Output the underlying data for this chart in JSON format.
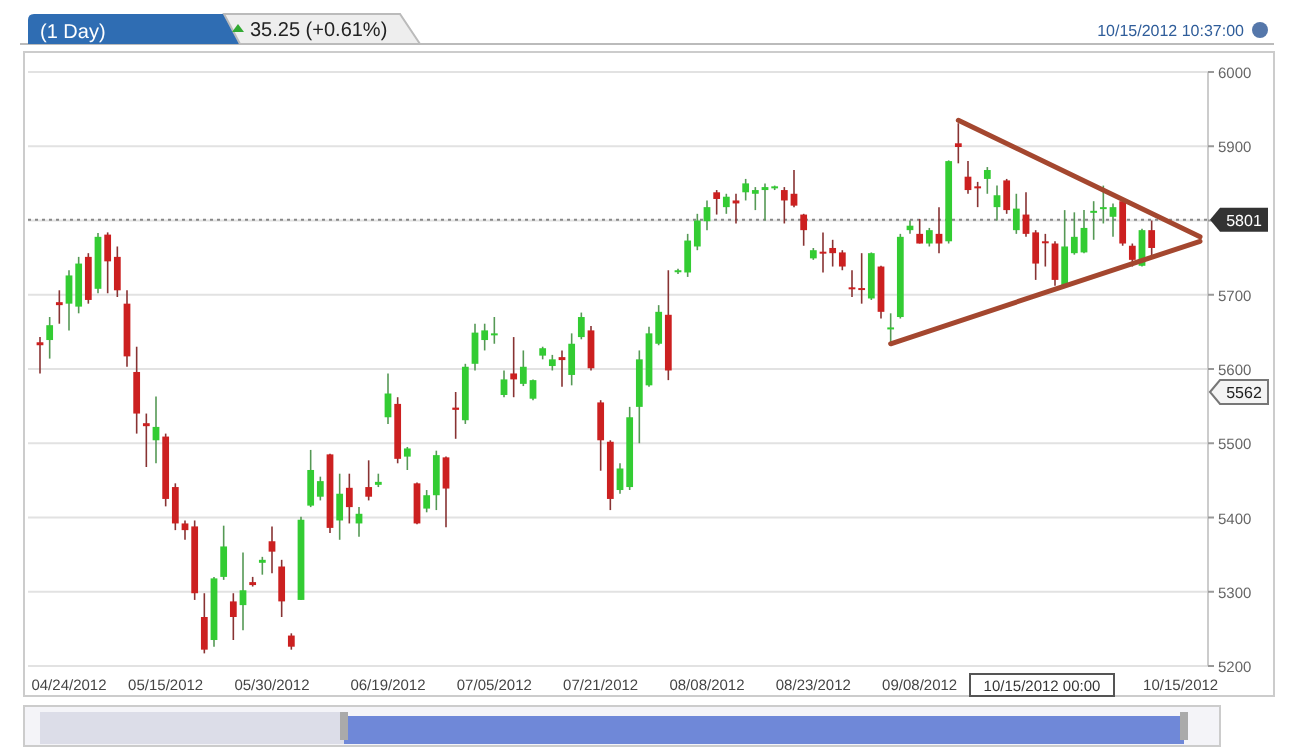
{
  "chart_data": {
    "type": "candlestick",
    "title": "(1 Day)",
    "subtitle": "35.25 (+0.61%)",
    "categories": [
      null,
      null,
      null,
      "04/24/2012",
      null,
      null,
      null,
      null,
      null,
      null,
      null,
      null,
      null,
      "05/15/2012",
      null,
      null,
      null,
      null,
      null,
      null,
      null,
      null,
      null,
      null,
      "05/30/2012",
      null,
      null,
      null,
      null,
      null,
      null,
      null,
      null,
      null,
      null,
      null,
      "06/19/2012",
      null,
      null,
      null,
      null,
      null,
      null,
      null,
      null,
      null,
      null,
      "07/05/2012",
      null,
      null,
      null,
      null,
      null,
      null,
      null,
      null,
      null,
      null,
      "07/21/2012",
      null,
      null,
      null,
      null,
      null,
      null,
      null,
      null,
      null,
      null,
      "08/08/2012",
      null,
      null,
      null,
      null,
      null,
      null,
      null,
      null,
      null,
      null,
      "08/23/2012",
      null,
      null,
      null,
      null,
      null,
      null,
      null,
      null,
      null,
      null,
      "09/08/2012",
      null,
      null,
      null,
      null,
      null,
      null,
      null,
      null,
      null,
      null,
      null,
      null,
      null,
      null,
      null,
      null,
      null,
      null,
      null,
      null,
      null,
      null,
      null,
      null,
      null,
      null,
      "10/15/2012",
      null,
      null
    ],
    "ohlc": [
      [
        5636,
        5643,
        5594,
        5632
      ],
      [
        5639,
        5670,
        5614,
        5659
      ],
      [
        5690,
        5706,
        5661,
        5686
      ],
      [
        5688,
        5733,
        5652,
        5726
      ],
      [
        5684,
        5751,
        5675,
        5742
      ],
      [
        5751,
        5756,
        5688,
        5693
      ],
      [
        5708,
        5783,
        5702,
        5778
      ],
      [
        5781,
        5784,
        5702,
        5745
      ],
      [
        5751,
        5765,
        5697,
        5706
      ],
      [
        5688,
        5706,
        5603,
        5617
      ],
      [
        5596,
        5630,
        5513,
        5540
      ],
      [
        5527,
        5540,
        5468,
        5523
      ],
      [
        5504,
        5563,
        5473,
        5522
      ],
      [
        5509,
        5513,
        5415,
        5425
      ],
      [
        5441,
        5446,
        5383,
        5392
      ],
      [
        5392,
        5396,
        5370,
        5383
      ],
      [
        5388,
        5396,
        5289,
        5298
      ],
      [
        5266,
        5298,
        5217,
        5222
      ],
      [
        5235,
        5320,
        5226,
        5318
      ],
      [
        5320,
        5389,
        5316,
        5361
      ],
      [
        5287,
        5298,
        5235,
        5266
      ],
      [
        5282,
        5353,
        5248,
        5302
      ],
      [
        5313,
        5320,
        5307,
        5309
      ],
      [
        5339,
        5347,
        5323,
        5343
      ],
      [
        5368,
        5388,
        5325,
        5354
      ],
      [
        5334,
        5343,
        5266,
        5287
      ],
      [
        5241,
        5244,
        5222,
        5226
      ],
      [
        5289,
        5401,
        5289,
        5397
      ],
      [
        5416,
        5491,
        5414,
        5464
      ],
      [
        5428,
        5455,
        5423,
        5449
      ],
      [
        5485,
        5486,
        5379,
        5386
      ],
      [
        5396,
        5459,
        5370,
        5432
      ],
      [
        5440,
        5459,
        5392,
        5414
      ],
      [
        5392,
        5414,
        5374,
        5405
      ],
      [
        5441,
        5477,
        5423,
        5428
      ],
      [
        5444,
        5459,
        5441,
        5448
      ],
      [
        5535,
        5594,
        5526,
        5567
      ],
      [
        5553,
        5562,
        5473,
        5479
      ],
      [
        5482,
        5495,
        5464,
        5493
      ],
      [
        5446,
        5447,
        5391,
        5392
      ],
      [
        5412,
        5437,
        5407,
        5430
      ],
      [
        5430,
        5490,
        5410,
        5484
      ],
      [
        5481,
        5482,
        5387,
        5439
      ],
      [
        5548,
        5569,
        5506,
        5545
      ],
      [
        5531,
        5607,
        5526,
        5603
      ],
      [
        5607,
        5661,
        5598,
        5649
      ],
      [
        5639,
        5661,
        5625,
        5652
      ],
      [
        5646,
        5670,
        5634,
        5648
      ],
      [
        5565,
        5598,
        5562,
        5586
      ],
      [
        5594,
        5643,
        5562,
        5586
      ],
      [
        5580,
        5625,
        5577,
        5603
      ],
      [
        5560,
        5586,
        5558,
        5585
      ],
      [
        5618,
        5630,
        5613,
        5628
      ],
      [
        5604,
        5619,
        5598,
        5613
      ],
      [
        5616,
        5625,
        5576,
        5612
      ],
      [
        5592,
        5648,
        5578,
        5634
      ],
      [
        5643,
        5676,
        5640,
        5670
      ],
      [
        5652,
        5658,
        5598,
        5601
      ],
      [
        5555,
        5558,
        5463,
        5504
      ],
      [
        5502,
        5504,
        5410,
        5425
      ],
      [
        5437,
        5473,
        5432,
        5466
      ],
      [
        5441,
        5549,
        5437,
        5535
      ],
      [
        5549,
        5625,
        5500,
        5613
      ],
      [
        5578,
        5657,
        5576,
        5648
      ],
      [
        5634,
        5686,
        5632,
        5677
      ],
      [
        5673,
        5733,
        5585,
        5598
      ],
      [
        5731,
        5735,
        5728,
        5733
      ],
      [
        5730,
        5782,
        5724,
        5773
      ],
      [
        5765,
        5809,
        5760,
        5800
      ],
      [
        5799,
        5827,
        5787,
        5818
      ],
      [
        5838,
        5841,
        5808,
        5829
      ],
      [
        5818,
        5836,
        5809,
        5832
      ],
      [
        5827,
        5836,
        5796,
        5823
      ],
      [
        5838,
        5856,
        5827,
        5850
      ],
      [
        5836,
        5845,
        5814,
        5841
      ],
      [
        5841,
        5850,
        5800,
        5845
      ],
      [
        5845,
        5847,
        5841,
        5846
      ],
      [
        5841,
        5845,
        5796,
        5827
      ],
      [
        5836,
        5868,
        5818,
        5820
      ],
      [
        5808,
        5809,
        5766,
        5787
      ],
      [
        5749,
        5763,
        5747,
        5760
      ],
      [
        5758,
        5784,
        5730,
        5757
      ],
      [
        5763,
        5774,
        5738,
        5756
      ],
      [
        5757,
        5760,
        5733,
        5738
      ],
      [
        5710,
        5733,
        5697,
        5708
      ],
      [
        5709,
        5756,
        5688,
        5708
      ],
      [
        5695,
        5757,
        5693,
        5756
      ],
      [
        5738,
        5739,
        5668,
        5677
      ],
      [
        5654,
        5675,
        5634,
        5656
      ],
      [
        5670,
        5782,
        5668,
        5778
      ],
      [
        5787,
        5800,
        5782,
        5793
      ],
      [
        5782,
        5802,
        5769,
        5769
      ],
      [
        5769,
        5790,
        5765,
        5787
      ],
      [
        5782,
        5818,
        5756,
        5769
      ],
      [
        5772,
        5881,
        5769,
        5880
      ],
      [
        5904,
        5931,
        5877,
        5899
      ],
      [
        5859,
        5880,
        5836,
        5841
      ],
      [
        5846,
        5852,
        5818,
        5845
      ],
      [
        5856,
        5872,
        5836,
        5868
      ],
      [
        5818,
        5847,
        5800,
        5834
      ],
      [
        5854,
        5856,
        5809,
        5814
      ],
      [
        5787,
        5836,
        5782,
        5816
      ],
      [
        5808,
        5838,
        5778,
        5782
      ],
      [
        5784,
        5787,
        5720,
        5742
      ],
      [
        5772,
        5782,
        5738,
        5771
      ],
      [
        5769,
        5772,
        5712,
        5720
      ],
      [
        5712,
        5814,
        5711,
        5765
      ],
      [
        5756,
        5811,
        5754,
        5778
      ],
      [
        5757,
        5814,
        5756,
        5790
      ],
      [
        5811,
        5826,
        5774,
        5813
      ],
      [
        5816,
        5847,
        5796,
        5818
      ],
      [
        5805,
        5823,
        5778,
        5818
      ],
      [
        5826,
        5828,
        5766,
        5769
      ],
      [
        5766,
        5769,
        5738,
        5747
      ],
      [
        5739,
        5789,
        5738,
        5787
      ],
      [
        5787,
        5800,
        5750,
        5763
      ],
      null,
      null,
      null,
      null,
      null
    ],
    "series": [
      {
        "type": "line",
        "color": "#a4472f",
        "values": [
          null,
          null,
          null,
          null,
          null,
          null,
          null,
          null,
          null,
          null,
          null,
          null,
          null,
          null,
          null,
          null,
          null,
          null,
          null,
          null,
          null,
          null,
          null,
          null,
          null,
          null,
          null,
          null,
          null,
          null,
          null,
          null,
          null,
          null,
          null,
          null,
          null,
          null,
          null,
          null,
          null,
          null,
          null,
          null,
          null,
          null,
          null,
          null,
          null,
          null,
          null,
          null,
          null,
          null,
          null,
          null,
          null,
          null,
          null,
          null,
          null,
          null,
          null,
          null,
          null,
          null,
          null,
          null,
          null,
          null,
          null,
          null,
          null,
          null,
          null,
          null,
          null,
          null,
          null,
          null,
          null,
          null,
          null,
          null,
          null,
          null,
          null,
          null,
          null,
          null,
          null,
          null,
          null,
          null,
          null,
          5935,
          null,
          null,
          null,
          null,
          null,
          null,
          null,
          null,
          null,
          null,
          null,
          null,
          null,
          null,
          null,
          null,
          null,
          null,
          null,
          null,
          null,
          null,
          null,
          null,
          5778
        ]
      },
      {
        "type": "line",
        "color": "#a4472f",
        "values": [
          null,
          null,
          null,
          null,
          null,
          null,
          null,
          null,
          null,
          null,
          null,
          null,
          null,
          null,
          null,
          null,
          null,
          null,
          null,
          null,
          null,
          null,
          null,
          null,
          null,
          null,
          null,
          null,
          null,
          null,
          null,
          null,
          null,
          null,
          null,
          null,
          null,
          null,
          null,
          null,
          null,
          null,
          null,
          null,
          null,
          null,
          null,
          null,
          null,
          null,
          null,
          null,
          null,
          null,
          null,
          null,
          null,
          null,
          null,
          null,
          null,
          null,
          null,
          null,
          null,
          null,
          null,
          null,
          null,
          null,
          null,
          null,
          null,
          null,
          null,
          null,
          null,
          null,
          null,
          null,
          null,
          null,
          null,
          null,
          null,
          null,
          null,
          null,
          5634,
          null,
          null,
          null,
          null,
          null,
          null,
          null,
          null,
          null,
          null,
          null,
          null,
          null,
          null,
          null,
          null,
          null,
          null,
          null,
          null,
          null,
          null,
          null,
          null,
          null,
          null,
          null,
          null,
          null,
          null,
          null,
          5772
        ]
      }
    ],
    "ylim": [
      5200,
      6000
    ],
    "yticks": [
      5200,
      5300,
      5400,
      5500,
      5600,
      5700,
      {
        "value": 5800,
        "label": null
      },
      5900,
      6000
    ],
    "grid": "y",
    "ref_lines": [
      {
        "axis": "y",
        "value": 5801,
        "label": "5801",
        "color": "#888888",
        "line_style": "dotted"
      }
    ],
    "annotations": [
      "10/15/2012 10:37:00",
      "10/15/2012 00:00",
      "5562"
    ]
  }
}
